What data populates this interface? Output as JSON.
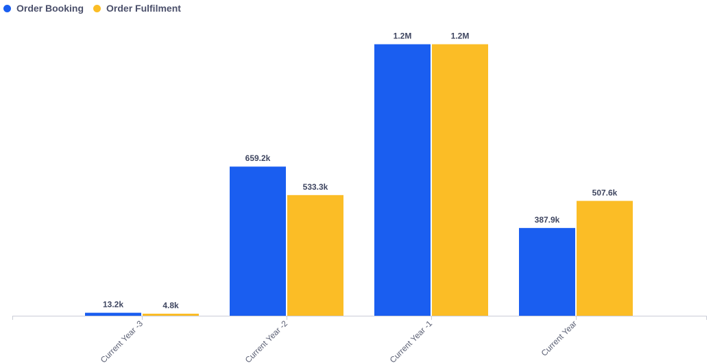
{
  "chart_data": {
    "type": "bar",
    "title": "",
    "xlabel": "",
    "ylabel": "",
    "categories": [
      "Current Year -3",
      "Current Year -2",
      "Current Year -1",
      "Current Year"
    ],
    "series": [
      {
        "name": "Order Booking",
        "color": "#1a5ef0",
        "values": [
          13200,
          659200,
          1200000,
          387900
        ],
        "labels": [
          "13.2k",
          "659.2k",
          "1.2M",
          "387.9k"
        ]
      },
      {
        "name": "Order Fulfilment",
        "color": "#fbbd26",
        "values": [
          4800,
          533300,
          1200000,
          507600
        ],
        "labels": [
          "4.8k",
          "533.3k",
          "1.2M",
          "507.6k"
        ]
      }
    ],
    "ylim": [
      0,
      1335000
    ],
    "grid": false,
    "legend_position": "top-left"
  }
}
